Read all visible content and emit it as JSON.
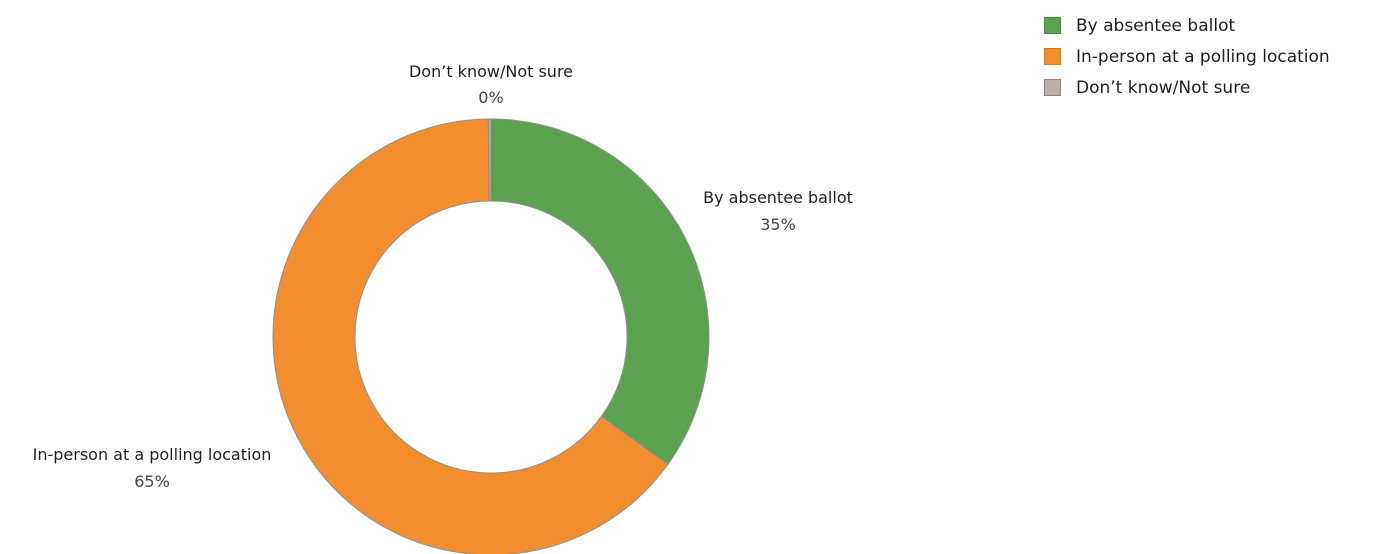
{
  "chart_data": {
    "type": "pie",
    "variant": "donut",
    "title": "",
    "categories": [
      "By absentee ballot",
      "In-person at a polling location",
      "Don’t know/Not sure"
    ],
    "values": [
      35,
      65,
      0.2
    ],
    "value_labels": [
      "35%",
      "65%",
      "0%"
    ],
    "colors": [
      "#5ba150",
      "#f28e2e",
      "#bab0ab"
    ],
    "legend_position": "top-right"
  },
  "legend": {
    "items": [
      {
        "label": "By absentee ballot",
        "color": "#5ba150"
      },
      {
        "label": "In-person at a polling location",
        "color": "#f28e2e"
      },
      {
        "label": "Don’t know/Not sure",
        "color": "#bab0ab"
      }
    ]
  }
}
